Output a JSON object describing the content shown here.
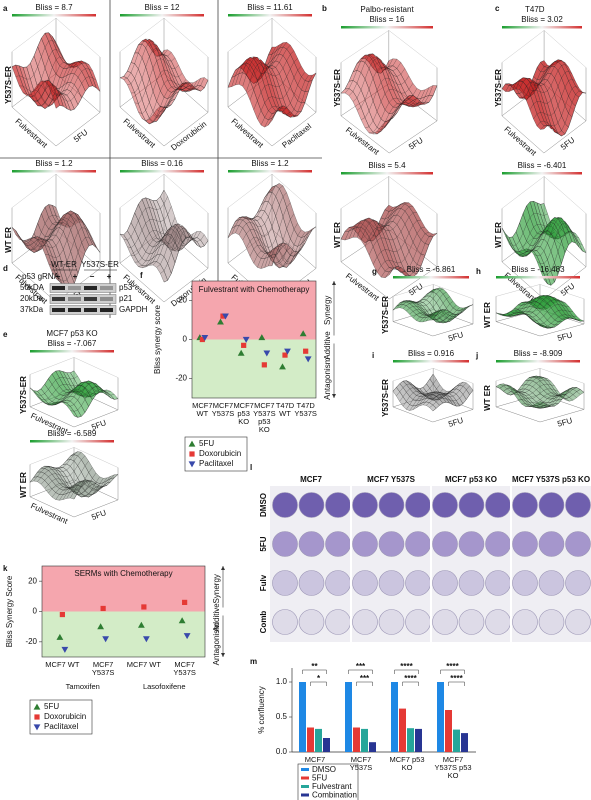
{
  "surface_groups": [
    {
      "letter": "a",
      "row_labels": [
        "Y537S-ER",
        "WT ER"
      ],
      "plots": [
        {
          "title": "Bliss = 8.7",
          "x_label": "5FU",
          "y_label": "Fulvestrant",
          "color": "#c62828"
        },
        {
          "title": "Bliss = 12",
          "x_label": "Doxorubicin",
          "y_label": "Fulvestrant",
          "color": "#c62828"
        },
        {
          "title": "Bliss = 11.61",
          "x_label": "Paclitaxel",
          "y_label": "Fulvestrant",
          "color": "#c62828"
        },
        {
          "title": "Bliss = 1.2",
          "x_label": "5FU",
          "y_label": "Fulvestrant",
          "color": "#a86a6a"
        },
        {
          "title": "Bliss = 0.16",
          "x_label": "Doxorubicin",
          "y_label": "Fulvestrant",
          "color": "#9a8080"
        },
        {
          "title": "Bliss = 1.2",
          "x_label": "Paclitaxel",
          "y_label": "Fulvestrant",
          "color": "#a86a6a"
        }
      ]
    },
    {
      "letter": "b",
      "header": "Palbo-resistant",
      "row_labels": [
        "Y537S-ER",
        "WT ER"
      ],
      "plots": [
        {
          "title": "Bliss = 16",
          "x_label": "5FU",
          "y_label": "Fulvestrant",
          "color": "#c62828"
        },
        {
          "title": "Bliss = 5.4",
          "x_label": "5FU",
          "y_label": "Fulvestrant",
          "color": "#b05858"
        }
      ]
    },
    {
      "letter": "c",
      "header": "T47D",
      "row_labels": [
        "Y537S-ER",
        "WT ER"
      ],
      "plots": [
        {
          "title": "Bliss = 3.02",
          "x_label": "5FU",
          "y_label": "Fulvestrant",
          "color": "#c62828"
        },
        {
          "title": "Bliss = -6.401",
          "x_label": "5FU",
          "y_label": "Fulvestrant",
          "color": "#2e9e3a"
        }
      ]
    },
    {
      "letter": "e",
      "header": "MCF7 p53 KO",
      "row_labels": [
        "Y537S-ER",
        "WT ER"
      ],
      "plots": [
        {
          "title": "Bliss = -7.067",
          "x_label": "5FU",
          "y_label": "Fulvestrant",
          "color": "#2e9e3a"
        },
        {
          "title": "Bliss = -6.589",
          "x_label": "5FU",
          "y_label": "Fulvestrant",
          "color": "#7a8a7a"
        }
      ]
    },
    {
      "letter": "g",
      "row_labels": [
        "Y537S-ER"
      ],
      "plots": [
        {
          "title": "Bliss = -6.861",
          "x_label": "5FU",
          "color": "#3a9a45"
        }
      ]
    },
    {
      "letter": "h",
      "row_labels": [
        "WT ER"
      ],
      "plots": [
        {
          "title": "Bliss = -16.483",
          "x_label": "5FU",
          "color": "#2e9e3a"
        }
      ]
    },
    {
      "letter": "i",
      "row_labels": [
        "Y537S-ER"
      ],
      "plots": [
        {
          "title": "Bliss = 0.916",
          "x_label": "5FU",
          "color": "#8a8a8a"
        }
      ]
    },
    {
      "letter": "j",
      "row_labels": [
        "WT ER"
      ],
      "plots": [
        {
          "title": "Bliss = -8.909",
          "x_label": "5FU",
          "color": "#5a9a60"
        }
      ]
    }
  ],
  "blot": {
    "letter": "d",
    "header_labels": [
      "WT-ER",
      "Y537S-ER"
    ],
    "gRNA_label": "p53 gRNA",
    "gRNA_signs": [
      "−",
      "+",
      "−",
      "+"
    ],
    "size_markers": [
      "50kDA",
      "20kDa",
      "37kDa"
    ],
    "bands": [
      "p53",
      "p21",
      "GAPDH"
    ]
  },
  "plates": {
    "letter": "l",
    "columns": [
      "MCF7",
      "MCF7 Y537S",
      "MCF7 p53 KO",
      "MCF7 Y537S p53 KO"
    ],
    "rows": [
      "DMSO",
      "5FU",
      "Fulv",
      "Comb"
    ],
    "well_colors": [
      "#6f5fae",
      "#a596cc",
      "#cbc5df",
      "#dedbe8"
    ]
  },
  "chart_data": [
    {
      "letter": "f",
      "type": "dot",
      "title": "Fulvestrant with Chemotherapy",
      "y_label": "Bliss synergy score",
      "categories": [
        "MCF7 WT",
        "MCF7 Y537S",
        "MCF7 p53 KO",
        "MCF7 Y537S p53 KO",
        "T47D WT",
        "T47D Y537S"
      ],
      "series": [
        {
          "name": "5FU",
          "color": "#2e7d32",
          "marker": "triangle-up",
          "values": [
            1,
            9,
            -7,
            1,
            -14,
            3
          ]
        },
        {
          "name": "Doxorubicin",
          "color": "#e53935",
          "marker": "square",
          "values": [
            0,
            12,
            -3,
            -13,
            -8,
            -6
          ]
        },
        {
          "name": "Paclitaxel",
          "color": "#3949ab",
          "marker": "triangle-down",
          "values": [
            1,
            12,
            0,
            -7,
            -6,
            -10
          ]
        }
      ],
      "ylim": [
        -30,
        30
      ],
      "yticks": [
        -20,
        0,
        20
      ],
      "regions": [
        {
          "label": "Synergy",
          "color": "#f5a6ae"
        },
        {
          "label": "Additive"
        },
        {
          "label": "Antagonism",
          "color": "#d3ecc7"
        }
      ]
    },
    {
      "letter": "k",
      "type": "dot",
      "title": "SERMs with Chemotherapy",
      "y_label": "Bliss Synergy Score",
      "categories": [
        "MCF7 WT",
        "MCF7 Y537S",
        "MCF7 WT",
        "MCF7 Y537S"
      ],
      "groups": [
        "Tamoxifen",
        "Lasofoxifene"
      ],
      "series": [
        {
          "name": "5FU",
          "color": "#2e7d32",
          "marker": "triangle-up",
          "values": [
            -17,
            -10,
            -9,
            -6
          ]
        },
        {
          "name": "Doxorubicin",
          "color": "#e53935",
          "marker": "square",
          "values": [
            -2,
            2,
            3,
            6
          ]
        },
        {
          "name": "Paclitaxel",
          "color": "#3949ab",
          "marker": "triangle-down",
          "values": [
            -25,
            -18,
            -18,
            -16
          ]
        }
      ],
      "ylim": [
        -30,
        30
      ],
      "yticks": [
        -20,
        0,
        20
      ],
      "regions": [
        {
          "label": "Synergy",
          "color": "#f5a6ae"
        },
        {
          "label": "Additive"
        },
        {
          "label": "Antagonism",
          "color": "#d3ecc7"
        }
      ]
    },
    {
      "letter": "m",
      "type": "bar",
      "y_label": "% confluency",
      "categories": [
        "MCF7",
        "MCF7 Y537S",
        "MCF7 p53 KO",
        "MCF7 Y537S p53 KO"
      ],
      "series": [
        {
          "name": "DMSO",
          "color": "#1e88e5",
          "values": [
            1,
            1,
            1,
            1
          ]
        },
        {
          "name": "5FU",
          "color": "#e53935",
          "values": [
            0.35,
            0.35,
            0.62,
            0.6
          ]
        },
        {
          "name": "Fulvestrant",
          "color": "#26a69a",
          "values": [
            0.33,
            0.33,
            0.34,
            0.32
          ]
        },
        {
          "name": "Combination",
          "color": "#283593",
          "values": [
            0.2,
            0.14,
            0.33,
            0.27
          ]
        }
      ],
      "ylim": [
        0,
        1.2
      ],
      "yticks": [
        {
          "value": 0,
          "label": "0.0"
        },
        {
          "value": 0.5,
          "label": "0.5"
        },
        {
          "value": 1,
          "label": "1.0"
        }
      ],
      "significance": [
        "**",
        "*",
        "***",
        "***",
        "****",
        "****",
        "****",
        "****"
      ]
    }
  ]
}
